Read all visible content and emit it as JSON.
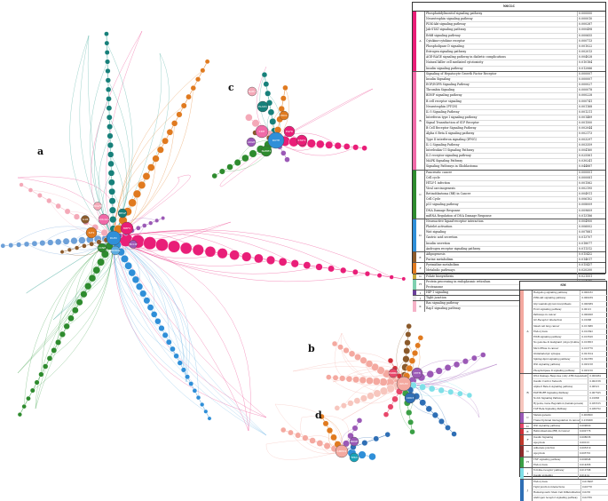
{
  "labels": {
    "a": "a",
    "b": "b",
    "c": "c",
    "d": "d"
  },
  "hubs": {
    "a": [
      "DLEC",
      "MEFV",
      "COL1A1",
      "IGF2",
      "PIK3CG",
      "CCNE",
      "MEGF",
      "IL1B",
      "BCCIP",
      "PDGFB"
    ],
    "c": [
      "RUTH",
      "CDH",
      "EGFR",
      "NAME1",
      "PLAD1",
      "STAT1",
      "PDCL",
      "ARGB",
      "NAB1"
    ],
    "b": [
      "RPLP2",
      "MITB",
      "CDK3",
      "ERBB2"
    ],
    "d": [
      "AMPD1",
      "BDNF",
      "TP63"
    ]
  },
  "table_nsclc": {
    "title": "NSCLC",
    "groups": [
      {
        "code": "A",
        "color": "#e91e78",
        "rows": [
          [
            "Phosphatidylinositol signaling pathway",
            "0.000000"
          ],
          [
            "Neurotrophin signaling pathway",
            "0.000010"
          ],
          [
            "PI3K-Akt signaling pathway",
            "0.000287"
          ],
          [
            "Jak-STAT signaling pathway",
            "0.000498"
          ],
          [
            "ErbB signaling pathway",
            "0.000655"
          ],
          [
            "Cytokine-cytokine receptor",
            "0.000713"
          ],
          [
            "Phospholipase D signaling",
            "0.001022"
          ],
          [
            "Estrogen signaling pathway",
            "0.002013"
          ],
          [
            "AGE-RAGE signaling pathway in diabetic complications",
            "0.004028"
          ],
          [
            "Natural killer cell mediated cytotoxicity",
            "0.010184"
          ],
          [
            "Insulin signaling pathway",
            "0.012066"
          ]
        ]
      },
      {
        "code": "B",
        "color": "#f06aa8",
        "rows": [
          [
            "Signaling of Hepatocyte Growth Factor Receptor",
            "0.000007"
          ],
          [
            "Insulin Signaling",
            "0.000007"
          ],
          [
            "EGF/EGFR Signaling Pathway",
            "0.000027"
          ],
          [
            "Thrombin Signaling",
            "0.000078"
          ],
          [
            "BDNF signaling pathway",
            "0.000228"
          ],
          [
            "B cell receptor signaling",
            "0.000741"
          ],
          [
            "Neurotrophin (PTCH)",
            "0.001168"
          ],
          [
            "IL-5 Signaling Pathway",
            "0.001211"
          ],
          [
            "Interferon type I signaling pathway",
            "0.001489"
          ],
          [
            "Signal Transduction of S1P Receptor",
            "0.001500"
          ],
          [
            "B Cell Receptor Signaling Pathway",
            "0.002044"
          ],
          [
            "Alpha 6 Beta 4 signaling pathway",
            "0.002173"
          ],
          [
            "Type II interferon signaling (IFNG)",
            "0.003297"
          ],
          [
            "IL-2 Signaling Pathway",
            "0.003359"
          ],
          [
            "Interleukin-11 Signaling Pathway",
            "0.004160"
          ],
          [
            "IL1 receptor signaling pathway",
            "0.025561"
          ],
          [
            "MAPK Signaling Pathway",
            "0.030241"
          ],
          [
            "Signaling Pathways in Glioblastoma",
            "0.044887"
          ]
        ]
      },
      {
        "code": "C",
        "color": "#2e8b2e",
        "rows": [
          [
            "Pancreatic cancer",
            "0.000001"
          ],
          [
            "Cell cycle",
            "0.000081"
          ],
          [
            "HTLV-1 infection",
            "0.001562"
          ],
          [
            "Viral carcinogenesis",
            "0.002195"
          ],
          [
            "Retinoblastoma (RB) in Cancer",
            "0.004911"
          ],
          [
            "Cell Cycle",
            "0.006102"
          ],
          [
            "p53 signaling pathway",
            "0.008009"
          ],
          [
            "DNA Damage Response",
            "0.009609"
          ],
          [
            "miRNA Regulation of DNA Damage Response",
            "0.013186"
          ]
        ]
      },
      {
        "code": "D",
        "color": "#2f8fd8",
        "rows": [
          [
            "Neuroactive ligand-receptor interaction",
            "0.004900"
          ],
          [
            "Platelet activation",
            "0.006002"
          ],
          [
            "Wnt signaling",
            "0.007881"
          ],
          [
            "Gastric acid secretion",
            "0.013707"
          ],
          [
            "Insulin secretion",
            "0.018077"
          ],
          [
            "Androgen receptor signaling pathway",
            "0.011312"
          ]
        ]
      },
      {
        "code": "E",
        "color": "#8b5a2b",
        "rows": [
          [
            "Adipogenesis",
            "0.015432"
          ],
          [
            "Purine metabolism",
            "0.014017"
          ]
        ]
      },
      {
        "code": "F",
        "color": "#e07a1f",
        "rows": [
          [
            "Pyrimidine metabolism",
            "0.015437"
          ],
          [
            "Metabolic pathways",
            "0.020200"
          ]
        ]
      },
      {
        "code": "G",
        "color": "#c8aa3a",
        "rows": [
          [
            "Folate biosynthesis",
            "0.021551"
          ]
        ]
      },
      {
        "code": "H",
        "color": "#7fd0b0",
        "rows": [
          [
            "Protein processing in endoplasmic reticulum",
            "0.004675"
          ],
          [
            "Proteasome",
            "0.003342"
          ]
        ]
      },
      {
        "code": "I",
        "color": "#6a3d9a",
        "rows": [
          [
            "HIF-1 signaling",
            "0.012345"
          ]
        ]
      },
      {
        "code": "J",
        "color": "#e6e6e6",
        "rows": [
          [
            "Tight junction",
            "0.018922"
          ]
        ]
      },
      {
        "code": "K",
        "color": "#f6b3c8",
        "rows": [
          [
            "Ras signaling pathway",
            "0.023787"
          ],
          [
            "Rap1 signaling pathway",
            "0.023788"
          ]
        ]
      }
    ]
  },
  "table_sm": {
    "title": "SM",
    "groups": [
      {
        "code": "A",
        "color": "#f4a9a0",
        "rows": [
          [
            "Hedgehog signaling pathway",
            "0.000182"
          ],
          [
            "PI3K-Akt signaling pathway",
            "0.000239"
          ],
          [
            "Glycosaminoglycan biosynthesis",
            "0.000389"
          ],
          [
            "FoxO signaling pathway",
            "0.00121"
          ],
          [
            "Pathways in cancer",
            "0.000928"
          ],
          [
            "GC-Receptor interaction",
            "0.01088"
          ],
          [
            "Small cell lung cancer",
            "0.011686"
          ],
          [
            "Endocytosis",
            "0.012392"
          ],
          [
            "ErbB signaling pathway",
            "0.013526"
          ],
          [
            "Ns genome & malignant (oligocytokine)",
            "0.013853"
          ],
          [
            "MicroRNAs in cancer",
            "0.013776"
          ],
          [
            "Glutamatergic synapse",
            "0.021614"
          ],
          [
            "Sphingolipid signaling pathway",
            "0.022786"
          ],
          [
            "Wnt signaling pathway",
            "0.025158"
          ],
          [
            "Phospholipase D signaling pathway",
            "0.025150"
          ]
        ]
      },
      {
        "code": "B",
        "color": "#f7c6be",
        "rows": [
          [
            "DNA Damage Response (only ATM dependent)",
            "0.000284"
          ],
          [
            "Insulin Control Network",
            "0.002156"
          ],
          [
            "Alpha 6 Beta 4 signaling pathway",
            "0.00521"
          ],
          [
            "EGF/EGFR Signaling Pathway",
            "0.007525"
          ],
          [
            "Notch Signaling Pathway",
            "0.01883"
          ],
          [
            "Hypoxia, Gene Regulation (hematopoiesis)",
            "0.033315"
          ],
          [
            "TGF Beta Signaling Pathway",
            "0.036752"
          ]
        ]
      },
      {
        "code": "C",
        "color": "#9b59b6",
        "rows": [
          [
            "Melanogenesis",
            "0.009600"
          ],
          [
            "Transcriptional misregulation in cancer",
            "0.016008"
          ]
        ]
      },
      {
        "code": "D",
        "color": "#e8476a",
        "rows": [
          [
            "Wnt signaling pathway",
            "0.009600"
          ]
        ]
      },
      {
        "code": "E",
        "color": "#d1313a",
        "rows": [
          [
            "Retinoblastoma (RB) in Cancer",
            "0.002776"
          ]
        ]
      },
      {
        "code": "F",
        "color": "#c0392b",
        "rows": [
          [
            "Insulin Signaling",
            "0.008036"
          ],
          [
            "Apoptosis",
            "0.00123"
          ]
        ]
      },
      {
        "code": "G",
        "color": "#8e2d2d",
        "rows": [
          [
            "Adherens junction",
            "0.005319"
          ],
          [
            "Apoptosis",
            "0.005761"
          ]
        ]
      },
      {
        "code": "H",
        "color": "#3a9f45",
        "rows": [
          [
            "TNF signaling pathway",
            "0.000848"
          ],
          [
            "Endocytosis",
            "0.014366"
          ]
        ]
      },
      {
        "code": "I",
        "color": "#7fe0e8",
        "rows": [
          [
            "Toll-like receptor pathway",
            "0.012798"
          ],
          [
            "Insulin signaling",
            "0.01414"
          ]
        ]
      },
      {
        "code": "J",
        "color": "#2f6fb5",
        "rows": [
          [
            "Endocytosis",
            "0.016997"
          ],
          [
            "Tight junction interactions",
            "0.00778"
          ],
          [
            "Hematopoietic Stem Cell Differentiation",
            "0.0235"
          ],
          [
            "Androgen receptor signaling pathway",
            "0.02769"
          ]
        ]
      }
    ]
  }
}
